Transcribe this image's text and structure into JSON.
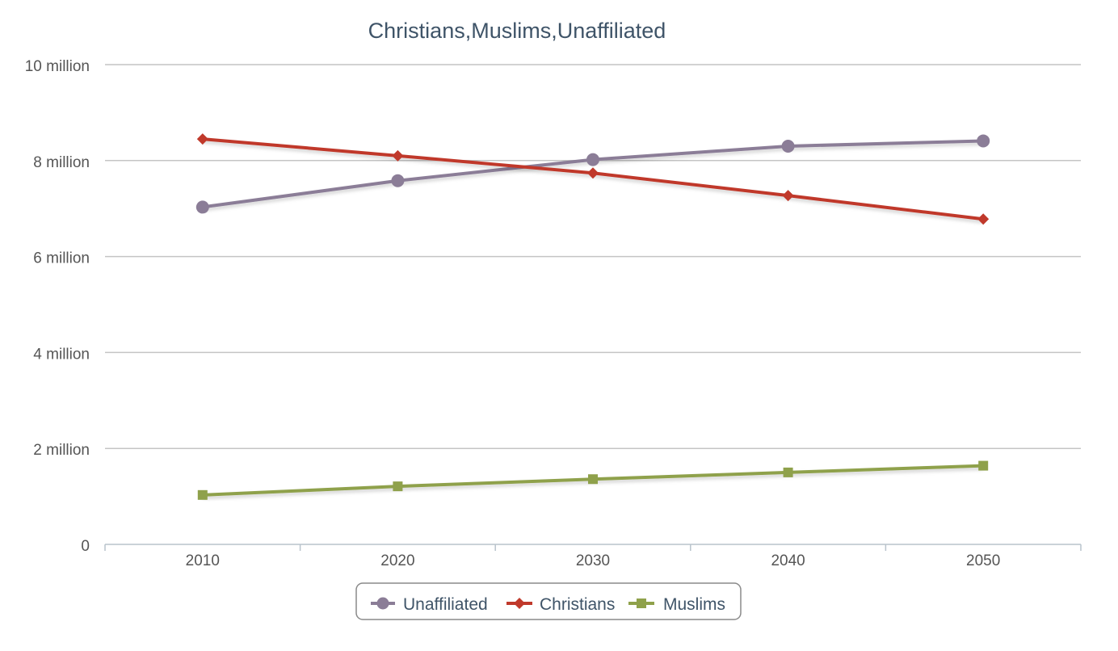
{
  "chart_data": {
    "type": "line",
    "title": "Christians,Muslims,Unaffiliated",
    "xlabel": "",
    "ylabel": "",
    "categories": [
      "2010",
      "2020",
      "2030",
      "2040",
      "2050"
    ],
    "ylim": [
      0,
      10000000
    ],
    "yticks": [
      {
        "value": 0,
        "label": "0"
      },
      {
        "value": 2000000,
        "label": "2 million"
      },
      {
        "value": 4000000,
        "label": "4 million"
      },
      {
        "value": 6000000,
        "label": "6 million"
      },
      {
        "value": 8000000,
        "label": "8 million"
      },
      {
        "value": 10000000,
        "label": "10 million"
      }
    ],
    "grid": true,
    "legend_position": "bottom-center",
    "series": [
      {
        "name": "Unaffiliated",
        "color": "#8b7d97",
        "marker": "circle",
        "values": [
          7030000,
          7580000,
          8020000,
          8300000,
          8410000
        ]
      },
      {
        "name": "Christians",
        "color": "#c0392b",
        "marker": "diamond",
        "values": [
          8450000,
          8100000,
          7740000,
          7270000,
          6780000
        ]
      },
      {
        "name": "Muslims",
        "color": "#8fa14b",
        "marker": "square",
        "values": [
          1030000,
          1210000,
          1360000,
          1500000,
          1640000
        ]
      }
    ]
  }
}
